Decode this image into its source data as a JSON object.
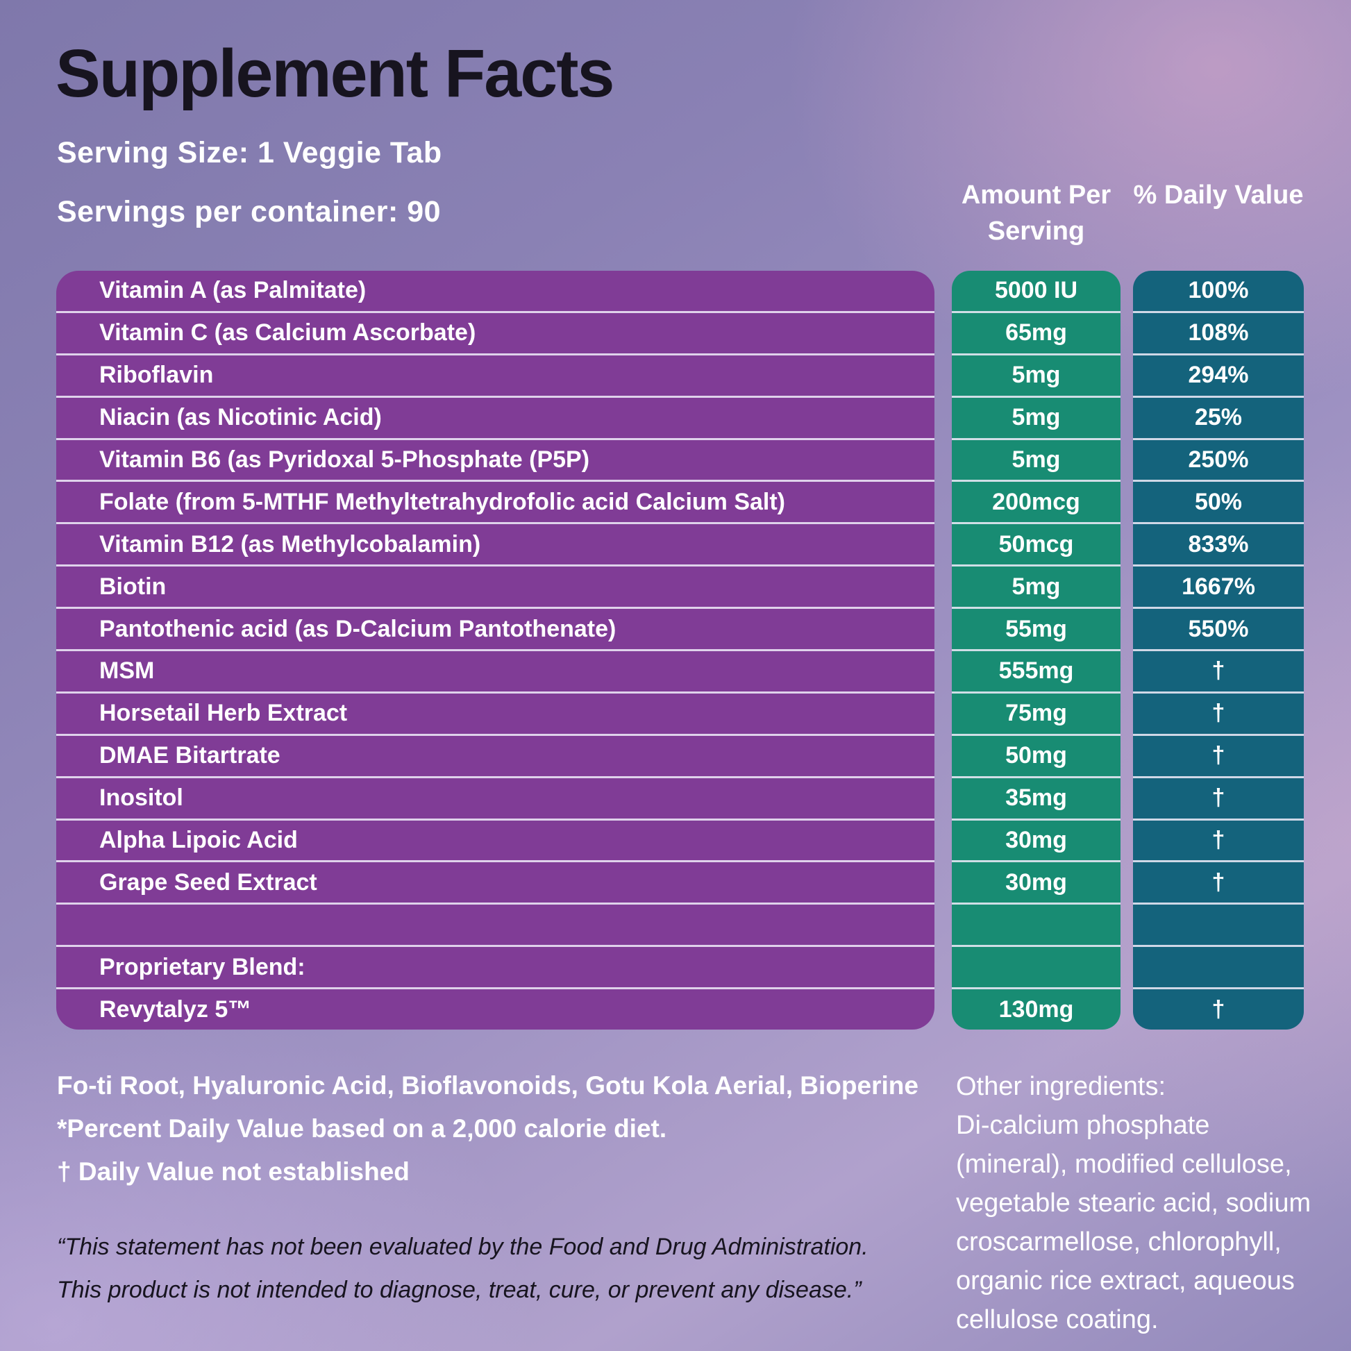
{
  "title": "Supplement Facts",
  "serving": {
    "size": "Serving Size: 1 Veggie Tab",
    "per_container": "Servings per container: 90"
  },
  "columns": {
    "amount_header": "Amount Per Serving",
    "dv_header": "% Daily Value"
  },
  "rows": [
    {
      "name": "Vitamin A (as Palmitate)",
      "amount": "5000 IU",
      "dv": "100%"
    },
    {
      "name": "Vitamin C (as Calcium Ascorbate)",
      "amount": "65mg",
      "dv": "108%"
    },
    {
      "name": "Riboflavin",
      "amount": "5mg",
      "dv": "294%"
    },
    {
      "name": "Niacin (as Nicotinic Acid)",
      "amount": "5mg",
      "dv": "25%"
    },
    {
      "name": "Vitamin B6 (as Pyridoxal 5-Phosphate (P5P)",
      "amount": "5mg",
      "dv": "250%"
    },
    {
      "name": "Folate (from 5-MTHF Methyltetrahydrofolic acid Calcium Salt)",
      "amount": "200mcg",
      "dv": "50%"
    },
    {
      "name": "Vitamin B12 (as Methylcobalamin)",
      "amount": "50mcg",
      "dv": "833%"
    },
    {
      "name": "Biotin",
      "amount": "5mg",
      "dv": "1667%"
    },
    {
      "name": "Pantothenic acid (as D-Calcium Pantothenate)",
      "amount": "55mg",
      "dv": "550%"
    },
    {
      "name": "MSM",
      "amount": "555mg",
      "dv": "†"
    },
    {
      "name": "Horsetail Herb Extract",
      "amount": "75mg",
      "dv": "†"
    },
    {
      "name": "DMAE Bitartrate",
      "amount": "50mg",
      "dv": "†"
    },
    {
      "name": "Inositol",
      "amount": "35mg",
      "dv": "†"
    },
    {
      "name": "Alpha Lipoic Acid",
      "amount": "30mg",
      "dv": "†"
    },
    {
      "name": "Grape Seed Extract",
      "amount": "30mg",
      "dv": "†"
    },
    {
      "name": "",
      "amount": "",
      "dv": ""
    },
    {
      "name": "Proprietary Blend:",
      "amount": "",
      "dv": ""
    },
    {
      "name": "Revytalyz 5™",
      "amount": "130mg",
      "dv": "†"
    }
  ],
  "footnotes": {
    "blend_ingredients": "Fo-ti Root, Hyaluronic Acid, Bioflavonoids, Gotu Kola Aerial, Bioperine",
    "percent_dv": "*Percent Daily Value based on a 2,000 calorie diet.",
    "dagger": "† Daily Value not established"
  },
  "other_ingredients": {
    "heading": "Other ingredients:",
    "body": "Di-calcium phosphate (mineral), modified cellulose, vegetable stearic acid, sodium croscarmellose, chlorophyll, organic rice extract, aqueous cellulose coating."
  },
  "disclaimer": {
    "line1": "“This statement has not been evaluated by the Food and Drug Administration.",
    "line2": "This product is not intended to diagnose, treat, cure, or prevent any disease.”"
  },
  "colors": {
    "purple": "#803c96",
    "green": "#188c73",
    "teal": "#14637c",
    "ink": "#17141f"
  }
}
